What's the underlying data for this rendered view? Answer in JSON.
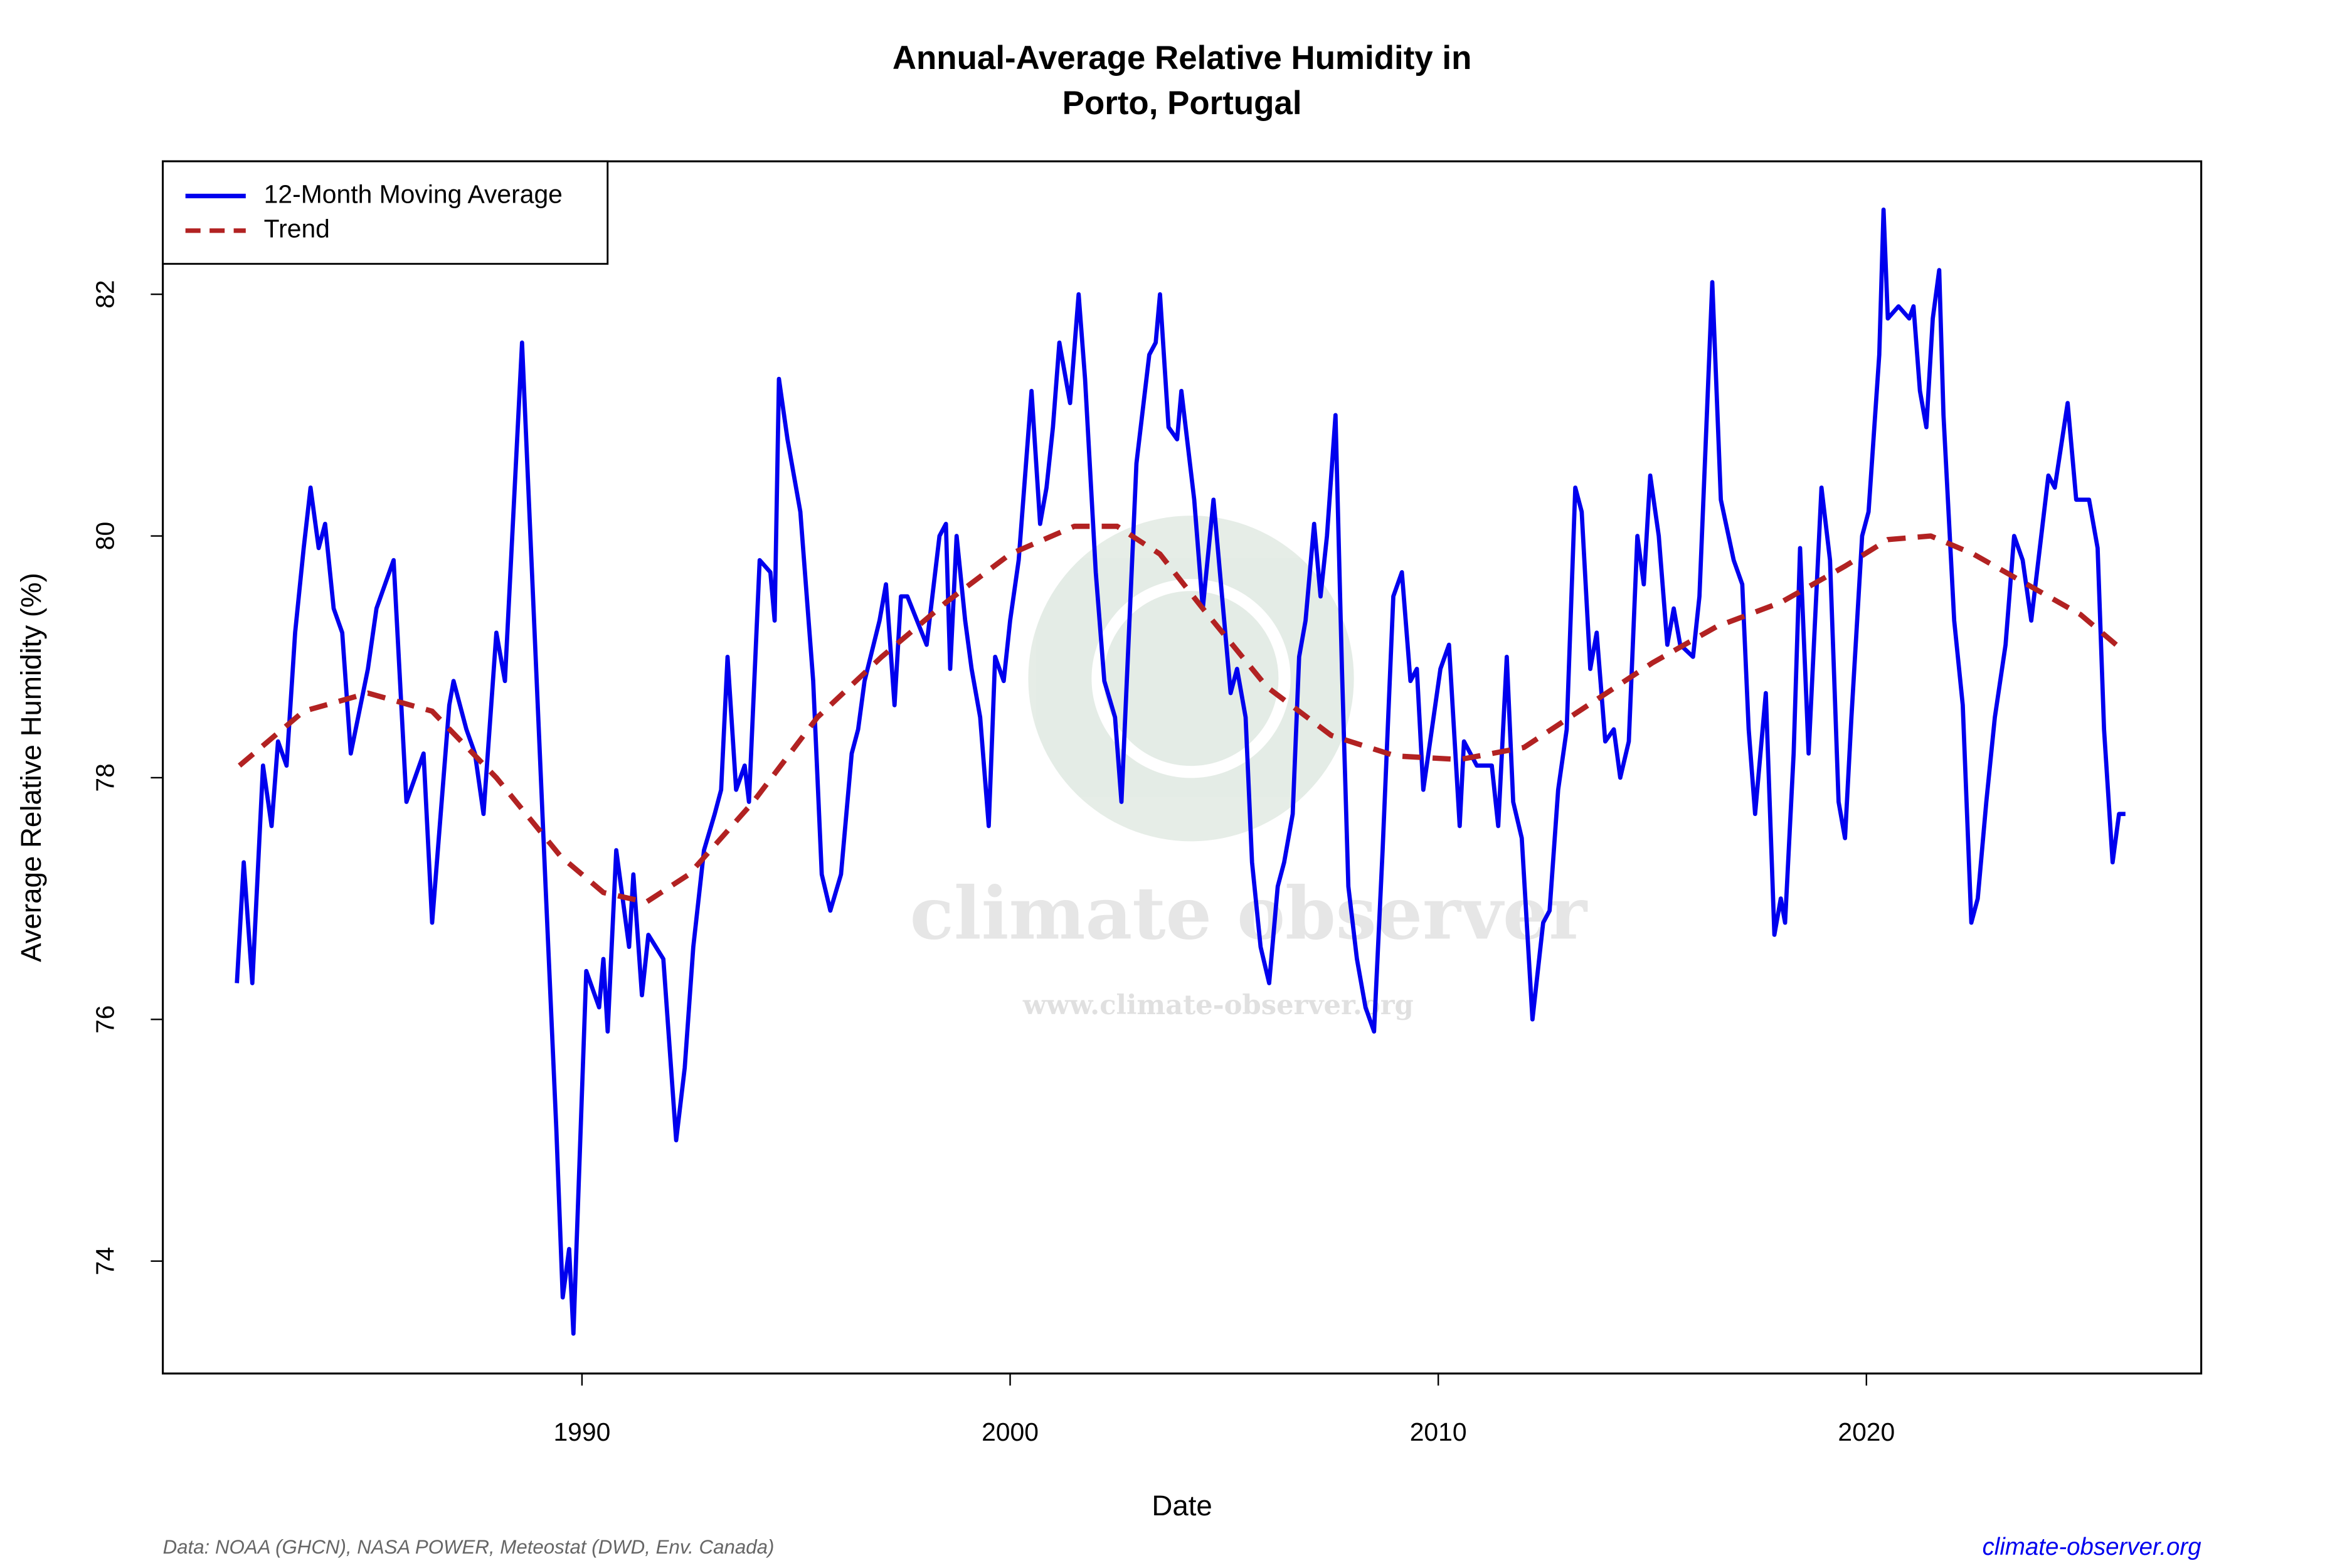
{
  "chart_data": {
    "type": "line",
    "title": [
      "Annual-Average Relative Humidity in",
      "Porto, Portugal"
    ],
    "x_label": "Date",
    "y_label": "Average Relative Humidity (%)",
    "source": "Data: NOAA (GHCN), NASA POWER, Meteostat (DWD, Env. Canada)",
    "site": "climate-observer.org",
    "watermark": [
      "climate observer",
      "www.climate-observer.org"
    ],
    "legend": "top-left",
    "xlim": [
      1980.21,
      2027.82
    ],
    "ylim": [
      73.07,
      83.1
    ],
    "xticks": [
      1990,
      2000,
      2010,
      2020
    ],
    "yticks": [
      74,
      76,
      78,
      80,
      82
    ],
    "series": [
      {
        "name": "12-Month Moving Average",
        "color": "#0000ee",
        "dash": false,
        "x": [
          1981.94,
          1982.1,
          1982.3,
          1982.55,
          1982.75,
          1982.9,
          1983.1,
          1983.3,
          1983.5,
          1983.66,
          1983.85,
          1984.0,
          1984.2,
          1984.4,
          1984.6,
          1985.0,
          1985.2,
          1985.6,
          1985.9,
          1986.3,
          1986.5,
          1986.9,
          1987.0,
          1987.3,
          1987.5,
          1987.7,
          1988.0,
          1988.2,
          1988.6,
          1989.15,
          1989.4,
          1989.55,
          1989.7,
          1989.8,
          1990.1,
          1990.4,
          1990.5,
          1990.6,
          1990.8,
          1990.95,
          1991.1,
          1991.2,
          1991.4,
          1991.55,
          1991.9,
          1992.2,
          1992.4,
          1992.6,
          1992.85,
          1993.1,
          1993.25,
          1993.4,
          1993.6,
          1993.8,
          1993.9,
          1994.15,
          1994.4,
          1994.5,
          1994.6,
          1994.8,
          1995.1,
          1995.4,
          1995.6,
          1995.8,
          1996.05,
          1996.3,
          1996.45,
          1996.6,
          1996.95,
          1997.1,
          1997.3,
          1997.45,
          1997.6,
          1998.05,
          1998.35,
          1998.5,
          1998.6,
          1998.75,
          1998.95,
          1999.1,
          1999.3,
          1999.5,
          1999.65,
          1999.85,
          2000.0,
          2000.2,
          2000.35,
          2000.5,
          2000.7,
          2000.85,
          2001.0,
          2001.15,
          2001.4,
          2001.6,
          2001.75,
          2002.0,
          2002.2,
          2002.45,
          2002.6,
          2002.75,
          2002.95,
          2003.25,
          2003.4,
          2003.5,
          2003.7,
          2003.9,
          2004.0,
          2004.3,
          2004.5,
          2004.75,
          2005.0,
          2005.15,
          2005.3,
          2005.5,
          2005.65,
          2005.85,
          2006.05,
          2006.25,
          2006.4,
          2006.6,
          2006.75,
          2006.9,
          2007.1,
          2007.25,
          2007.4,
          2007.6,
          2007.75,
          2007.9,
          2008.1,
          2008.3,
          2008.5,
          2008.7,
          2008.95,
          2009.15,
          2009.35,
          2009.5,
          2009.65,
          2009.85,
          2010.05,
          2010.25,
          2010.5,
          2010.6,
          2010.9,
          2011.25,
          2011.4,
          2011.6,
          2011.75,
          2011.95,
          2012.2,
          2012.45,
          2012.6,
          2012.8,
          2013.0,
          2013.2,
          2013.35,
          2013.55,
          2013.7,
          2013.9,
          2014.1,
          2014.25,
          2014.45,
          2014.65,
          2014.8,
          2014.95,
          2015.15,
          2015.35,
          2015.5,
          2015.65,
          2015.95,
          2016.1,
          2016.25,
          2016.4,
          2016.6,
          2016.9,
          2017.1,
          2017.25,
          2017.4,
          2017.65,
          2017.85,
          2018.0,
          2018.1,
          2018.3,
          2018.45,
          2018.65,
          2018.95,
          2019.15,
          2019.35,
          2019.5,
          2019.65,
          2019.9,
          2020.05,
          2020.3,
          2020.4,
          2020.5,
          2020.75,
          2021.0,
          2021.1,
          2021.25,
          2021.4,
          2021.55,
          2021.7,
          2021.8,
          2022.05,
          2022.25,
          2022.45,
          2022.6,
          2022.8,
          2023.0,
          2023.25,
          2023.45,
          2023.65,
          2023.85,
          2024.05,
          2024.25,
          2024.4,
          2024.7,
          2024.9,
          2025.2,
          2025.4,
          2025.55,
          2025.75,
          2025.9,
          2026.05
        ],
        "values": [
          76.3,
          77.3,
          76.3,
          78.1,
          77.6,
          78.3,
          78.1,
          79.2,
          79.9,
          80.4,
          79.9,
          80.1,
          79.4,
          79.2,
          78.2,
          78.9,
          79.4,
          79.8,
          77.8,
          78.2,
          76.8,
          78.6,
          78.8,
          78.4,
          78.2,
          77.7,
          79.2,
          78.8,
          81.6,
          77.1,
          75.1,
          73.7,
          74.1,
          73.4,
          76.4,
          76.1,
          76.5,
          75.9,
          77.4,
          77.0,
          76.6,
          77.2,
          76.2,
          76.7,
          76.5,
          75.0,
          75.6,
          76.6,
          77.4,
          77.7,
          77.9,
          79.0,
          77.9,
          78.1,
          77.8,
          79.8,
          79.7,
          79.3,
          81.3,
          80.8,
          80.2,
          78.8,
          77.2,
          76.9,
          77.2,
          78.2,
          78.4,
          78.8,
          79.3,
          79.6,
          78.6,
          79.5,
          79.5,
          79.1,
          80.0,
          80.1,
          78.9,
          80.0,
          79.3,
          78.9,
          78.5,
          77.6,
          79.0,
          78.8,
          79.3,
          79.8,
          80.5,
          81.2,
          80.1,
          80.4,
          80.9,
          81.6,
          81.1,
          82.0,
          81.3,
          79.7,
          78.8,
          78.5,
          77.8,
          79.0,
          80.6,
          81.5,
          81.6,
          82.0,
          80.9,
          80.8,
          81.2,
          80.3,
          79.4,
          80.3,
          79.3,
          78.7,
          78.9,
          78.5,
          77.3,
          76.6,
          76.3,
          77.1,
          77.3,
          77.7,
          79.0,
          79.3,
          80.1,
          79.5,
          80.0,
          81.0,
          78.9,
          77.1,
          76.5,
          76.1,
          75.9,
          77.4,
          79.5,
          79.7,
          78.8,
          78.9,
          77.9,
          78.4,
          78.9,
          79.1,
          77.6,
          78.3,
          78.1,
          78.1,
          77.6,
          79.0,
          77.8,
          77.5,
          76.0,
          76.8,
          76.9,
          77.9,
          78.4,
          80.4,
          80.2,
          78.9,
          79.2,
          78.3,
          78.4,
          78.0,
          78.3,
          80.0,
          79.6,
          80.5,
          80.0,
          79.1,
          79.4,
          79.1,
          79.0,
          79.5,
          80.8,
          82.1,
          80.3,
          79.8,
          79.6,
          78.4,
          77.7,
          78.7,
          76.7,
          77.0,
          76.8,
          78.2,
          79.9,
          78.2,
          80.4,
          79.8,
          77.8,
          77.5,
          78.5,
          80.0,
          80.2,
          81.5,
          82.7,
          81.8,
          81.9,
          81.8,
          81.9,
          81.2,
          80.9,
          81.8,
          82.2,
          81.0,
          79.3,
          78.6,
          76.8,
          77.0,
          77.8,
          78.5,
          79.1,
          80.0,
          79.8,
          79.3,
          79.9,
          80.5,
          80.4,
          81.1,
          80.3,
          80.3,
          79.9,
          78.4,
          77.3,
          77.7,
          77.7
        ]
      },
      {
        "name": "Trend",
        "color": "#b22222",
        "dash": true,
        "x": [
          1982.0,
          1983.5,
          1985.0,
          1986.5,
          1988.0,
          1989.5,
          1990.5,
          1991.5,
          1992.5,
          1994.0,
          1995.5,
          1997.0,
          1998.5,
          2000.0,
          2001.5,
          2002.5,
          2003.5,
          2004.5,
          2006.0,
          2007.5,
          2009.0,
          2010.5,
          2012.0,
          2013.5,
          2015.0,
          2016.5,
          2018.0,
          2019.5,
          2020.5,
          2021.5,
          2022.5,
          2024.0,
          2025.0,
          2026.0
        ],
        "values": [
          78.1,
          78.55,
          78.7,
          78.55,
          78.0,
          77.35,
          77.05,
          76.97,
          77.2,
          77.8,
          78.5,
          79.0,
          79.45,
          79.85,
          80.08,
          80.08,
          79.85,
          79.4,
          78.75,
          78.35,
          78.18,
          78.15,
          78.25,
          78.6,
          78.95,
          79.25,
          79.45,
          79.75,
          79.97,
          80.0,
          79.85,
          79.55,
          79.35,
          79.05
        ]
      }
    ]
  }
}
